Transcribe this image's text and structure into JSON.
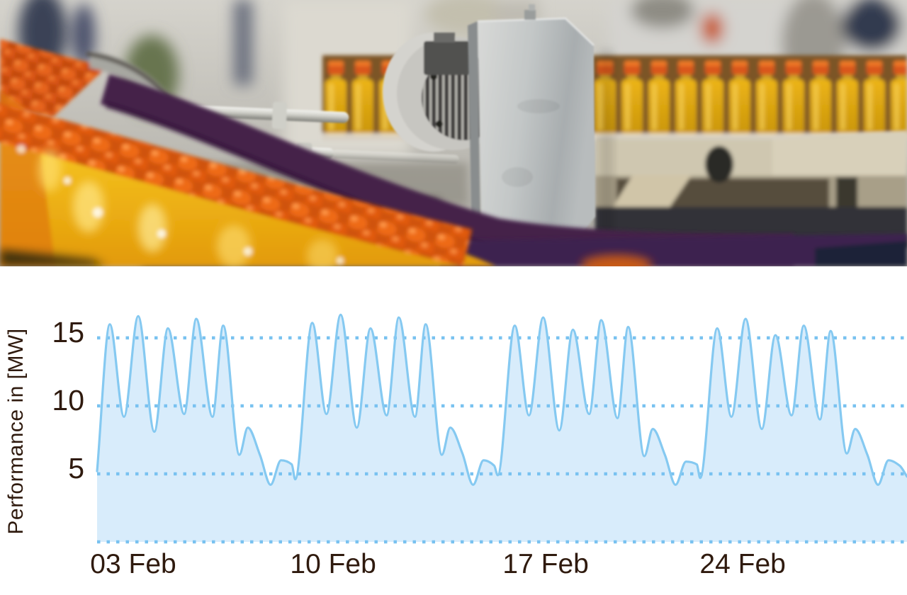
{
  "photo": {
    "description": "Blurred photo of an orange-juice bottling plant: rows of bottles with orange caps and yellow juice on conveyors, a dark purple guide rail, an electric motor with a grey metal mounting plate in the centre, stainless-steel machinery in the background",
    "palette": {
      "juice_yellow": "#f2b818",
      "cap_orange": "#e8601a",
      "rail_purple": "#45214a",
      "plate_gray": "#c3c7c7",
      "background_gray": "#c6c4bd",
      "dark_navy": "#252e44"
    }
  },
  "chart_data": {
    "type": "area",
    "title": "",
    "ylabel": "Performance in [MW]",
    "xlabel": "",
    "ylim": [
      0,
      17.6
    ],
    "x_range_days": [
      0,
      28
    ],
    "grid": "dotted horizontal lines",
    "grid_values": [
      0,
      5,
      10,
      15
    ],
    "legend": "none",
    "yticks": [
      {
        "value": 15,
        "label": "15"
      },
      {
        "value": 10,
        "label": "10"
      },
      {
        "value": 5,
        "label": "5"
      }
    ],
    "xticks": [
      {
        "label": "03 Feb",
        "day": 1.25
      },
      {
        "label": "10 Feb",
        "day": 8.16
      },
      {
        "label": "17 Feb",
        "day": 15.51
      },
      {
        "label": "24 Feb",
        "day": 22.32
      }
    ],
    "series": [
      {
        "name": "Performance [MW]",
        "points": [
          [
            0,
            5.2
          ],
          [
            0.44,
            16
          ],
          [
            0.93,
            9.2
          ],
          [
            1.42,
            16.6
          ],
          [
            1.98,
            8.1
          ],
          [
            2.45,
            15.7
          ],
          [
            3.01,
            9.4
          ],
          [
            3.43,
            16.4
          ],
          [
            3.99,
            9.2
          ],
          [
            4.36,
            15.9
          ],
          [
            4.92,
            6.4
          ],
          [
            5.21,
            8.4
          ],
          [
            5.63,
            6.4
          ],
          [
            6,
            4.2
          ],
          [
            6.36,
            6
          ],
          [
            6.73,
            5.7
          ],
          [
            6.85,
            4.6
          ],
          [
            7.44,
            16.1
          ],
          [
            7.93,
            9.4
          ],
          [
            8.42,
            16.7
          ],
          [
            8.98,
            8.4
          ],
          [
            9.45,
            15.7
          ],
          [
            10.01,
            9.3
          ],
          [
            10.43,
            16.5
          ],
          [
            10.99,
            9.2
          ],
          [
            11.36,
            16
          ],
          [
            11.92,
            6.4
          ],
          [
            12.21,
            8.4
          ],
          [
            12.63,
            6.5
          ],
          [
            13,
            4.2
          ],
          [
            13.36,
            6
          ],
          [
            13.73,
            5.6
          ],
          [
            13.85,
            4.9
          ],
          [
            14.44,
            15.9
          ],
          [
            14.93,
            9.3
          ],
          [
            15.42,
            16.5
          ],
          [
            15.98,
            8.2
          ],
          [
            16.45,
            15.6
          ],
          [
            17.01,
            9.4
          ],
          [
            17.43,
            16.3
          ],
          [
            17.99,
            9.1
          ],
          [
            18.36,
            15.8
          ],
          [
            18.92,
            6.3
          ],
          [
            19.21,
            8.3
          ],
          [
            19.63,
            6.4
          ],
          [
            20,
            4.2
          ],
          [
            20.36,
            5.9
          ],
          [
            20.73,
            5.7
          ],
          [
            20.85,
            4.7
          ],
          [
            21.44,
            15.7
          ],
          [
            21.93,
            9.2
          ],
          [
            22.42,
            16.4
          ],
          [
            22.98,
            8.3
          ],
          [
            23.45,
            15.2
          ],
          [
            24.01,
            9.3
          ],
          [
            24.43,
            15.9
          ],
          [
            24.99,
            9
          ],
          [
            25.36,
            15.5
          ],
          [
            25.92,
            6.5
          ],
          [
            26.21,
            8.3
          ],
          [
            26.63,
            6.4
          ],
          [
            27,
            4.2
          ],
          [
            27.36,
            6
          ],
          [
            27.75,
            5.6
          ],
          [
            28,
            4.8
          ]
        ]
      }
    ],
    "colors": {
      "line": "#85c9f1",
      "fill": "#d8ecfb",
      "grid_dots": "#79c2f0",
      "text": "#2f1a0e",
      "background": "#ffffff"
    }
  }
}
